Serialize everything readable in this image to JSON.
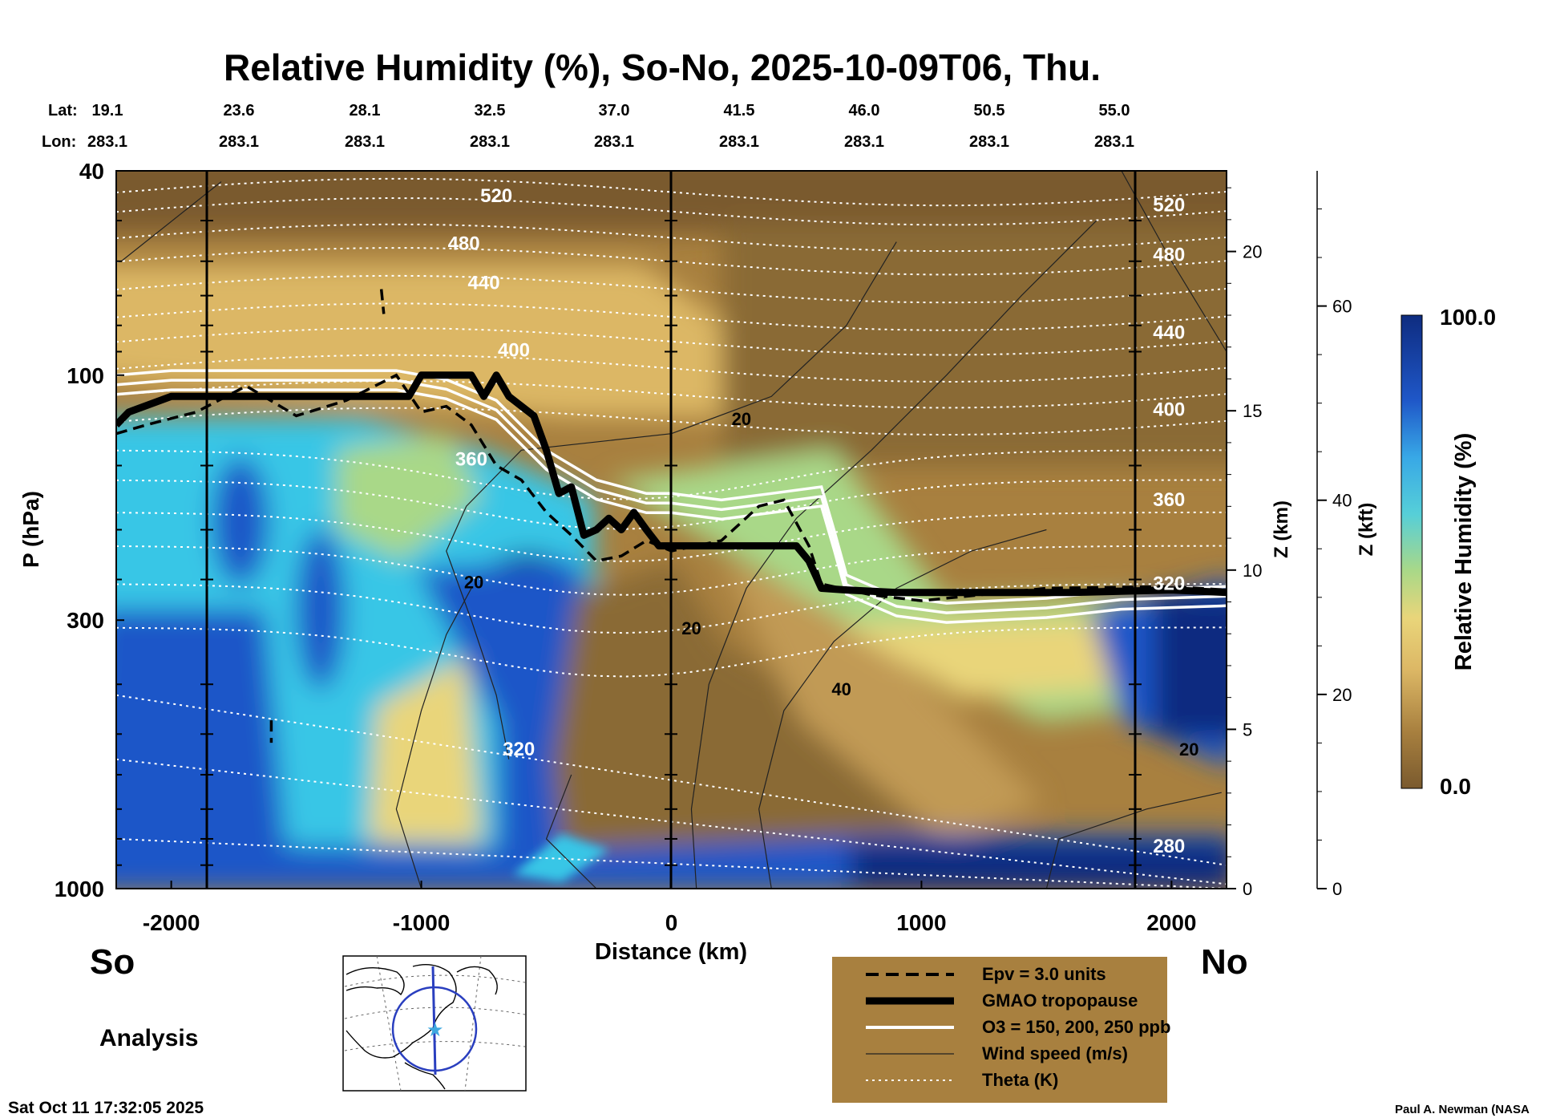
{
  "title": "Relative Humidity (%), So-No, 2025-10-09T06, Thu.",
  "lat_label": "Lat:",
  "lon_label": "Lon:",
  "lats": [
    "19.1",
    "23.6",
    "28.1",
    "32.5",
    "37.0",
    "41.5",
    "46.0",
    "50.5",
    "55.0"
  ],
  "lons": [
    "283.1",
    "283.1",
    "283.1",
    "283.1",
    "283.1",
    "283.1",
    "283.1",
    "283.1",
    "283.1"
  ],
  "south_label": "So",
  "north_label": "No",
  "analysis_label": "Analysis",
  "timestamp": "Sat Oct 11 17:32:05 2025",
  "credit": "Paul A. Newman (NASA",
  "colors": {
    "brown_dark": "#7a5a2e",
    "brown": "#a8803f",
    "tan": "#dcb765",
    "yellow": "#e9d57a",
    "green": "#a9d888",
    "cyan": "#38c6e6",
    "blue": "#1f57c8",
    "navy": "#0e2c80",
    "legend_bg": "#a8803f"
  },
  "legend": [
    {
      "style": "dashed",
      "label": "Epv = 3.0 units"
    },
    {
      "style": "thick",
      "label": "GMAO tropopause"
    },
    {
      "style": "white",
      "label": "O3 = 150, 200, 250 ppb"
    },
    {
      "style": "thin",
      "label": "Wind speed (m/s)"
    },
    {
      "style": "dotted",
      "label": "Theta (K)"
    }
  ],
  "colorbar": {
    "title": "Relative Humidity (%)",
    "max_label": "100.0",
    "min_label": "0.0"
  },
  "chart_data": {
    "type": "heatmap",
    "title": "Relative Humidity (%), So-No, 2025-10-09T06, Thu.",
    "xlabel": "Distance (km)",
    "ylabel": "P (hPa)",
    "ylabel_km": "Z (km)",
    "ylabel_kft": "Z (kft)",
    "x_ticks": [
      "-2000",
      "-1000",
      "0",
      "1000",
      "2000"
    ],
    "y_ticks": [
      "40",
      "100",
      "300",
      "1000"
    ],
    "km_ticks": [
      "20",
      "15",
      "10",
      "5",
      "0"
    ],
    "kft_ticks": [
      "60",
      "40",
      "20",
      "0"
    ],
    "xlim": [
      -2220,
      2220
    ],
    "ylim": [
      1000,
      40
    ],
    "y_scale": "log",
    "color_range": [
      0,
      100
    ],
    "tropopause": {
      "x": [
        -2220,
        -2170,
        -2000,
        -1600,
        -1050,
        -1000,
        -950,
        -800,
        -750,
        -700,
        -650,
        -550,
        -500,
        -450,
        -400,
        -350,
        -300,
        -250,
        -200,
        -150,
        -100,
        -50,
        0,
        100,
        200,
        300,
        400,
        500,
        550,
        600,
        700,
        900,
        1200,
        1600,
        2000,
        2220
      ],
      "p": [
        125,
        118,
        110,
        110,
        110,
        100,
        100,
        100,
        110,
        100,
        110,
        120,
        140,
        170,
        165,
        205,
        200,
        190,
        200,
        185,
        200,
        215,
        215,
        215,
        215,
        215,
        215,
        215,
        230,
        260,
        262,
        265,
        265,
        265,
        262,
        265
      ]
    },
    "theta_labels": [
      {
        "x": -700,
        "p": 46,
        "text": "520"
      },
      {
        "x": -830,
        "p": 57,
        "text": "480"
      },
      {
        "x": -750,
        "p": 68,
        "text": "440"
      },
      {
        "x": -630,
        "p": 92,
        "text": "400"
      },
      {
        "x": -800,
        "p": 150,
        "text": "360"
      },
      {
        "x": -610,
        "p": 550,
        "text": "320"
      },
      {
        "x": 1990,
        "p": 48,
        "text": "520"
      },
      {
        "x": 1990,
        "p": 60,
        "text": "480"
      },
      {
        "x": 1990,
        "p": 85,
        "text": "440"
      },
      {
        "x": 1990,
        "p": 120,
        "text": "400"
      },
      {
        "x": 1990,
        "p": 180,
        "text": "360"
      },
      {
        "x": 1990,
        "p": 262,
        "text": "320"
      },
      {
        "x": 1990,
        "p": 850,
        "text": "280"
      }
    ],
    "wind_labels": [
      {
        "x": 280,
        "p": 125,
        "text": "20"
      },
      {
        "x": -790,
        "p": 260,
        "text": "20"
      },
      {
        "x": 80,
        "p": 320,
        "text": "20"
      },
      {
        "x": 680,
        "p": 420,
        "text": "40"
      },
      {
        "x": 2070,
        "p": 550,
        "text": "20"
      }
    ]
  }
}
